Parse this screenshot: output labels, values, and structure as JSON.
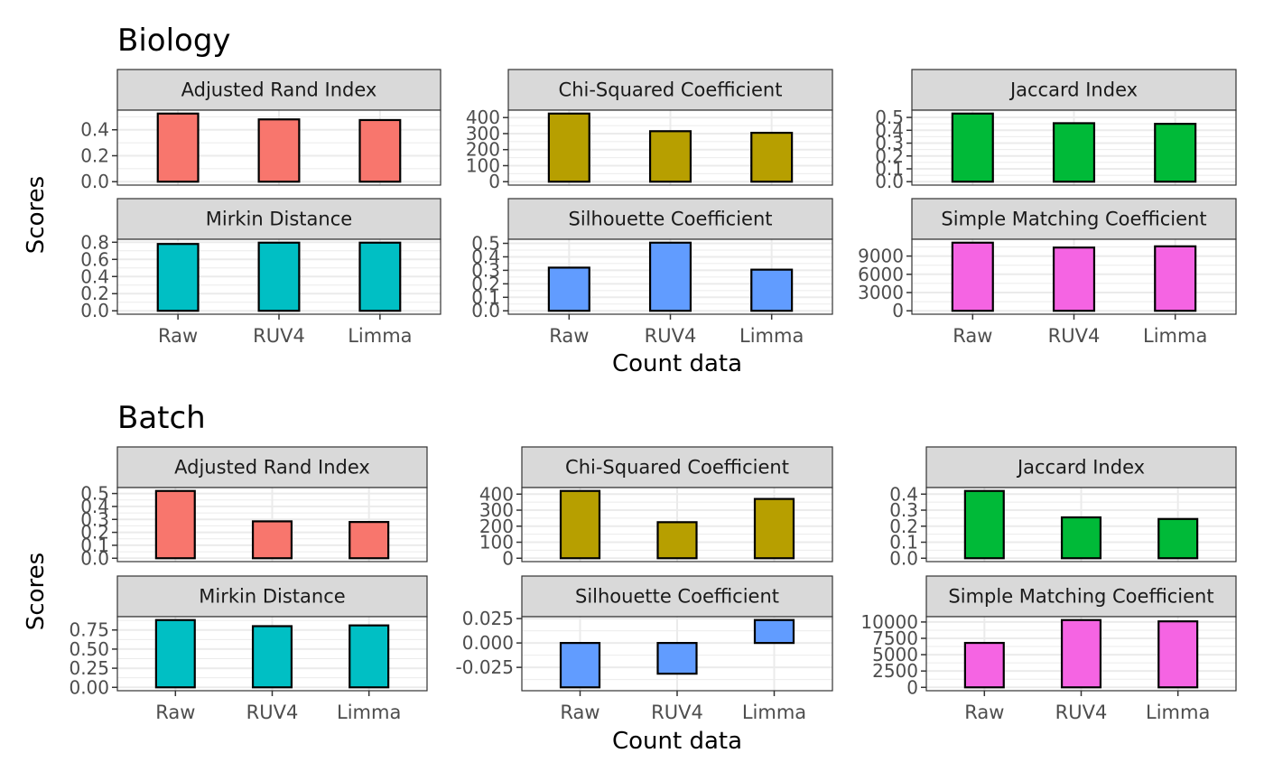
{
  "figure": {
    "x_axis_label": "Count data",
    "y_axis_label": "Scores"
  },
  "chart_data": [
    {
      "type": "bar",
      "group": "Biology",
      "title": "Adjusted Rand Index",
      "categories": [
        "Raw",
        "RUV4",
        "Limma"
      ],
      "values": [
        0.525,
        0.48,
        0.475
      ],
      "ylim": [
        0,
        0.525
      ],
      "yticks": [
        0,
        0.2,
        0.4
      ],
      "ytick_labels": [
        "0.0",
        "0.2",
        "0.4"
      ],
      "color": "#F8766D",
      "grid": true
    },
    {
      "type": "bar",
      "group": "Biology",
      "title": "Chi-Squared Coefficient",
      "categories": [
        "Raw",
        "RUV4",
        "Limma"
      ],
      "values": [
        425,
        315,
        305
      ],
      "ylim": [
        0,
        425
      ],
      "yticks": [
        0,
        100,
        200,
        300,
        400
      ],
      "ytick_labels": [
        "0",
        "100",
        "200",
        "300",
        "400"
      ],
      "color": "#B79F00",
      "grid": true
    },
    {
      "type": "bar",
      "group": "Biology",
      "title": "Jaccard Index",
      "categories": [
        "Raw",
        "RUV4",
        "Limma"
      ],
      "values": [
        0.53,
        0.455,
        0.45
      ],
      "ylim": [
        0,
        0.53
      ],
      "yticks": [
        0,
        0.1,
        0.2,
        0.3,
        0.4,
        0.5
      ],
      "ytick_labels": [
        "0.0",
        "0.1",
        "0.2",
        "0.3",
        "0.4",
        "0.5"
      ],
      "color": "#00BA38",
      "grid": true
    },
    {
      "type": "bar",
      "group": "Biology",
      "title": "Mirkin Distance",
      "categories": [
        "Raw",
        "RUV4",
        "Limma"
      ],
      "values": [
        0.78,
        0.795,
        0.795
      ],
      "ylim": [
        0,
        0.795
      ],
      "yticks": [
        0,
        0.2,
        0.4,
        0.6,
        0.8
      ],
      "ytick_labels": [
        "0.0",
        "0.2",
        "0.4",
        "0.6",
        "0.8"
      ],
      "color": "#00BFC4",
      "grid": true
    },
    {
      "type": "bar",
      "group": "Biology",
      "title": "Silhouette Coefficient",
      "categories": [
        "Raw",
        "RUV4",
        "Limma"
      ],
      "values": [
        0.32,
        0.505,
        0.305
      ],
      "ylim": [
        0,
        0.505
      ],
      "yticks": [
        0,
        0.1,
        0.2,
        0.3,
        0.4,
        0.5
      ],
      "ytick_labels": [
        "0.0",
        "0.1",
        "0.2",
        "0.3",
        "0.4",
        "0.5"
      ],
      "color": "#619CFF",
      "grid": true
    },
    {
      "type": "bar",
      "group": "Biology",
      "title": "Simple Matching Coefficient",
      "categories": [
        "Raw",
        "RUV4",
        "Limma"
      ],
      "values": [
        11200,
        10400,
        10600
      ],
      "ylim": [
        0,
        11200
      ],
      "yticks": [
        0,
        3000,
        6000,
        9000
      ],
      "ytick_labels": [
        "0",
        "3000",
        "6000",
        "9000"
      ],
      "color": "#F564E3",
      "grid": true
    },
    {
      "type": "bar",
      "group": "Batch",
      "title": "Adjusted Rand Index",
      "categories": [
        "Raw",
        "RUV4",
        "Limma"
      ],
      "values": [
        0.52,
        0.285,
        0.28
      ],
      "ylim": [
        0,
        0.52
      ],
      "yticks": [
        0,
        0.1,
        0.2,
        0.3,
        0.4,
        0.5
      ],
      "ytick_labels": [
        "0.0",
        "0.1",
        "0.2",
        "0.3",
        "0.4",
        "0.5"
      ],
      "color": "#F8766D",
      "grid": true
    },
    {
      "type": "bar",
      "group": "Batch",
      "title": "Chi-Squared Coefficient",
      "categories": [
        "Raw",
        "RUV4",
        "Limma"
      ],
      "values": [
        420,
        225,
        370
      ],
      "ylim": [
        0,
        420
      ],
      "yticks": [
        0,
        100,
        200,
        300,
        400
      ],
      "ytick_labels": [
        "0",
        "100",
        "200",
        "300",
        "400"
      ],
      "color": "#B79F00",
      "grid": true
    },
    {
      "type": "bar",
      "group": "Batch",
      "title": "Jaccard Index",
      "categories": [
        "Raw",
        "RUV4",
        "Limma"
      ],
      "values": [
        0.42,
        0.255,
        0.245
      ],
      "ylim": [
        0,
        0.42
      ],
      "yticks": [
        0,
        0.1,
        0.2,
        0.3,
        0.4
      ],
      "ytick_labels": [
        "0.0",
        "0.1",
        "0.2",
        "0.3",
        "0.4"
      ],
      "color": "#00BA38",
      "grid": true
    },
    {
      "type": "bar",
      "group": "Batch",
      "title": "Mirkin Distance",
      "categories": [
        "Raw",
        "RUV4",
        "Limma"
      ],
      "values": [
        0.88,
        0.8,
        0.81
      ],
      "ylim": [
        0,
        0.88
      ],
      "yticks": [
        0,
        0.25,
        0.5,
        0.75
      ],
      "ytick_labels": [
        "0.00",
        "0.25",
        "0.50",
        "0.75"
      ],
      "color": "#00BFC4",
      "grid": true
    },
    {
      "type": "bar",
      "group": "Batch",
      "title": "Silhouette Coefficient",
      "categories": [
        "Raw",
        "RUV4",
        "Limma"
      ],
      "values": [
        -0.0455,
        -0.0315,
        0.0235
      ],
      "ylim": [
        -0.0455,
        0.0235
      ],
      "yticks": [
        -0.025,
        0,
        0.025
      ],
      "ytick_labels": [
        "-0.025",
        "0.000",
        "0.025"
      ],
      "color": "#619CFF",
      "grid": true
    },
    {
      "type": "bar",
      "group": "Batch",
      "title": "Simple Matching Coefficient",
      "categories": [
        "Raw",
        "RUV4",
        "Limma"
      ],
      "values": [
        6800,
        10300,
        10100
      ],
      "ylim": [
        0,
        10300
      ],
      "yticks": [
        0,
        2500,
        5000,
        7500,
        10000
      ],
      "ytick_labels": [
        "0",
        "2500",
        "5000",
        "7500",
        "10000"
      ],
      "color": "#F564E3",
      "grid": true
    }
  ]
}
